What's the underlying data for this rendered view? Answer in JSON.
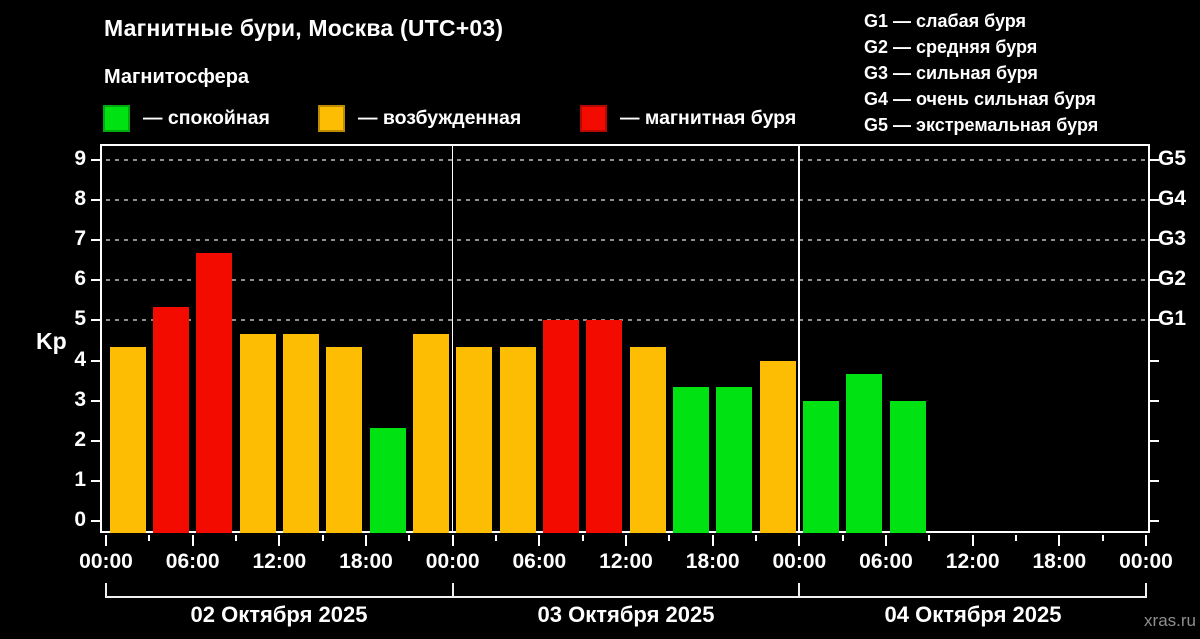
{
  "header": {
    "title": "Магнитные бури, Москва (UTC+03)",
    "subtitle": "Магнитосфера"
  },
  "legend": {
    "items": [
      {
        "label": "— спокойная",
        "level": "quiet"
      },
      {
        "label": "— возбужденная",
        "level": "excited"
      },
      {
        "label": "— магнитная буря",
        "level": "storm"
      }
    ]
  },
  "storm_scale": {
    "items": [
      "G1 — слабая буря",
      "G2 — средняя буря",
      "G3 — сильная буря",
      "G4 — очень сильная буря",
      "G5 — экстремальная буря"
    ]
  },
  "watermark": "xras.ru",
  "chart_data": {
    "type": "bar",
    "title": "Магнитные бури, Москва (UTC+03)",
    "subtitle": "Магнитосфера",
    "ylabel": "Kp",
    "xlabel": "",
    "ylim": [
      0,
      9.4
    ],
    "yticks": [
      0,
      1,
      2,
      3,
      4,
      5,
      6,
      7,
      8,
      9
    ],
    "gridlines_kp": [
      5,
      6,
      7,
      8,
      9
    ],
    "grid": "dashed horizontal at Kp 5..9",
    "right_axis": [
      {
        "kp": 5,
        "label": "G1"
      },
      {
        "kp": 6,
        "label": "G2"
      },
      {
        "kp": 7,
        "label": "G3"
      },
      {
        "kp": 8,
        "label": "G4"
      },
      {
        "kp": 9,
        "label": "G5"
      }
    ],
    "bar_hours": 3,
    "hours_total": 72,
    "x_label_step_hours": 6,
    "x_tick_labels": [
      "00:00",
      "06:00",
      "12:00",
      "18:00",
      "00:00",
      "06:00",
      "12:00",
      "18:00",
      "00:00",
      "06:00",
      "12:00",
      "18:00",
      "00:00"
    ],
    "colors": {
      "quiet": "#00E212",
      "excited": "#FCBD02",
      "storm": "#F30B00"
    },
    "days": [
      {
        "date": "02 Октября 2025",
        "bars": [
          {
            "kp": 4.33,
            "level": "excited"
          },
          {
            "kp": 5.33,
            "level": "storm"
          },
          {
            "kp": 6.67,
            "level": "storm"
          },
          {
            "kp": 4.67,
            "level": "excited"
          },
          {
            "kp": 4.67,
            "level": "excited"
          },
          {
            "kp": 4.33,
            "level": "excited"
          },
          {
            "kp": 2.33,
            "level": "quiet"
          },
          {
            "kp": 4.67,
            "level": "excited"
          }
        ]
      },
      {
        "date": "03 Октября 2025",
        "bars": [
          {
            "kp": 4.33,
            "level": "excited"
          },
          {
            "kp": 4.33,
            "level": "excited"
          },
          {
            "kp": 5.0,
            "level": "storm"
          },
          {
            "kp": 5.0,
            "level": "storm"
          },
          {
            "kp": 4.33,
            "level": "excited"
          },
          {
            "kp": 3.33,
            "level": "quiet"
          },
          {
            "kp": 3.33,
            "level": "quiet"
          },
          {
            "kp": 4.0,
            "level": "excited"
          }
        ]
      },
      {
        "date": "04 Октября 2025",
        "bars": [
          {
            "kp": 3.0,
            "level": "quiet"
          },
          {
            "kp": 3.67,
            "level": "quiet"
          },
          {
            "kp": 3.0,
            "level": "quiet"
          },
          null,
          null,
          null,
          null,
          null
        ]
      }
    ]
  }
}
